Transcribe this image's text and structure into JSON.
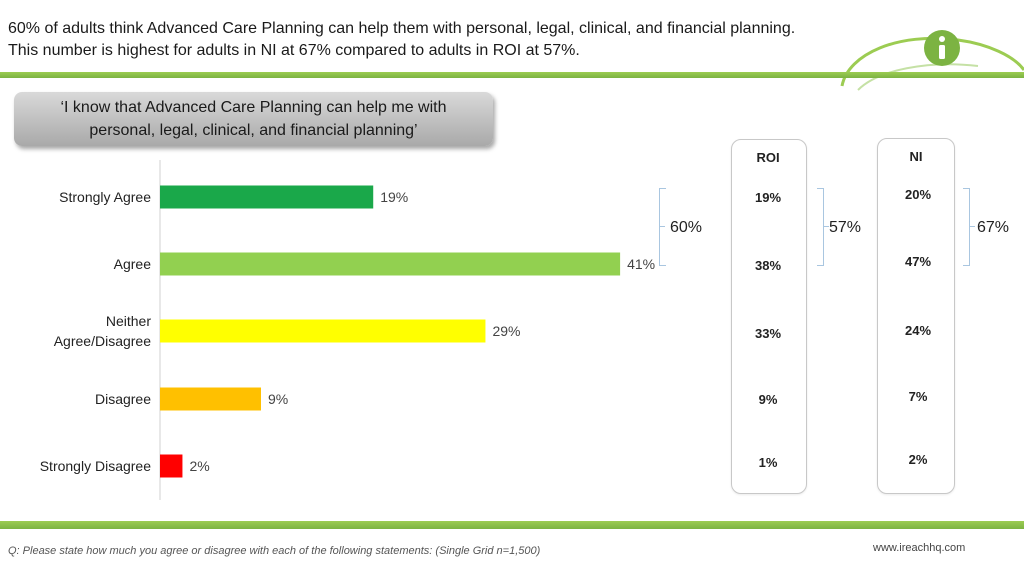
{
  "headline": {
    "line1": "60% of adults think Advanced Care Planning can help them with personal, legal, clinical, and financial planning.",
    "line2": "This number is highest for adults in NI at 67% compared to adults in ROI at 57%."
  },
  "logo": {
    "icon": "info-icon",
    "brand_color": "#7cb342"
  },
  "statement": {
    "line1": "‘I know that Advanced Care Planning can help me with",
    "line2": "personal, legal, clinical, and financial planning’"
  },
  "chart_data": {
    "type": "bar",
    "orientation": "horizontal",
    "categories": [
      "Strongly Agree",
      "Agree",
      "Neither Agree/Disagree",
      "Disagree",
      "Strongly Disagree"
    ],
    "category_lines": [
      [
        "Strongly Agree"
      ],
      [
        "Agree"
      ],
      [
        "Neither",
        "Agree/Disagree"
      ],
      [
        "Disagree"
      ],
      [
        "Strongly Disagree"
      ]
    ],
    "values": [
      19,
      41,
      29,
      9,
      2
    ],
    "value_labels": [
      "19%",
      "41%",
      "29%",
      "9%",
      "2%"
    ],
    "colors": [
      "#1aa84a",
      "#92d050",
      "#ffff00",
      "#ffc000",
      "#ff0000"
    ],
    "xlim": [
      0,
      45
    ],
    "grid": false,
    "agree_total_label": "60%"
  },
  "roi": {
    "header": "ROI",
    "values": [
      "19%",
      "38%",
      "33%",
      "9%",
      "1%"
    ],
    "agree_total_label": "57%"
  },
  "ni": {
    "header": "NI",
    "values": [
      "20%",
      "47%",
      "24%",
      "7%",
      "2%"
    ],
    "agree_total_label": "67%"
  },
  "footer": {
    "question": "Q: Please state how much you agree or disagree with each of the following statements: (Single Grid n=1,500)",
    "website": "www.ireachhq.com"
  }
}
